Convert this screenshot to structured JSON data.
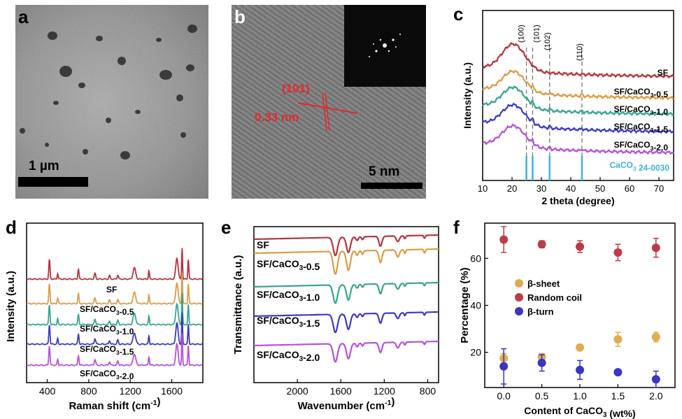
{
  "panels": {
    "a": {
      "label": "a",
      "scale_text": "1 µm"
    },
    "b": {
      "label": "b",
      "scale_text": "5 nm",
      "plane": "(101)",
      "dspacing": "0.33 nm"
    },
    "c": {
      "label": "c",
      "xlabel": "2 theta (degree)",
      "ylabel": "Intensity (a.u.)",
      "xticks": [
        "10",
        "20",
        "30",
        "40",
        "50",
        "60",
        "70"
      ],
      "peaks": [
        "(100)",
        "(101)",
        "(102)",
        "(110)"
      ],
      "series": [
        "SF",
        "SF/CaCO3-0.5",
        "SF/CaCO3-1.0",
        "SF/CaCO3-1.5",
        "SF/CaCO3-2.0"
      ],
      "ref": "CaCO3 24-0030"
    },
    "d": {
      "label": "d",
      "xlabel": "Raman shift (cm-1)",
      "ylabel": "Intensity (a.u.)",
      "xticks": [
        "400",
        "800",
        "1200",
        "1600"
      ],
      "series": [
        "SF",
        "SF/CaCO3-0.5",
        "SF/CaCO3-1.0",
        "SF/CaCO3-1.5",
        "SF/CaCO3-2.0"
      ]
    },
    "e": {
      "label": "e",
      "xlabel": "Wavenumber (cm-1)",
      "ylabel": "Transmittance (a.u.)",
      "xticks": [
        "2000",
        "1600",
        "1200",
        "800"
      ],
      "series": [
        "SF",
        "SF/CaCO3-0.5",
        "SF/CaCO3-1.0",
        "SF/CaCO3-1.5",
        "SF/CaCO3-2.0"
      ]
    },
    "f": {
      "label": "f",
      "xlabel": "Content of CaCO3 (wt%)",
      "ylabel": "Percentage (%)",
      "xticks": [
        "0.0",
        "0.5",
        "1.0",
        "1.5",
        "2.0"
      ],
      "yticks": [
        "20",
        "40",
        "60"
      ]
    }
  },
  "chart_data": [
    {
      "type": "line",
      "panel": "c",
      "xlabel": "2 theta (degree)",
      "ylabel": "Intensity (a.u.)",
      "xlim": [
        10,
        75
      ],
      "series": [
        {
          "name": "SF"
        },
        {
          "name": "SF/CaCO3-0.5"
        },
        {
          "name": "SF/CaCO3-1.0"
        },
        {
          "name": "SF/CaCO3-1.5"
        },
        {
          "name": "SF/CaCO3-2.0"
        }
      ],
      "reference": {
        "name": "CaCO3 24-0030",
        "x": [
          24.9,
          27.0,
          32.8,
          43.8
        ]
      },
      "annotations": [
        {
          "text": "(100)",
          "x": 24.9
        },
        {
          "text": "(101)",
          "x": 27.0
        },
        {
          "text": "(102)",
          "x": 32.8
        },
        {
          "text": "(110)",
          "x": 43.8
        }
      ]
    },
    {
      "type": "line",
      "panel": "d",
      "xlabel": "Raman shift (cm-1)",
      "ylabel": "Intensity (a.u.)",
      "xlim": [
        200,
        1900
      ],
      "series": [
        {
          "name": "SF"
        },
        {
          "name": "SF/CaCO3-0.5"
        },
        {
          "name": "SF/CaCO3-1.0"
        },
        {
          "name": "SF/CaCO3-1.5"
        },
        {
          "name": "SF/CaCO3-2.0"
        }
      ]
    },
    {
      "type": "line",
      "panel": "e",
      "xlabel": "Wavenumber (cm-1)",
      "ylabel": "Transmittance (a.u.)",
      "xlim": [
        2400,
        700
      ],
      "series": [
        {
          "name": "SF"
        },
        {
          "name": "SF/CaCO3-0.5"
        },
        {
          "name": "SF/CaCO3-1.0"
        },
        {
          "name": "SF/CaCO3-1.5"
        },
        {
          "name": "SF/CaCO3-2.0"
        }
      ]
    },
    {
      "type": "scatter",
      "panel": "f",
      "xlabel": "Content of CaCO3 (wt%)",
      "ylabel": "Percentage (%)",
      "xlim": [
        -0.25,
        2.25
      ],
      "ylim": [
        5,
        75
      ],
      "x": [
        0.0,
        0.5,
        1.0,
        1.5,
        2.0
      ],
      "series": [
        {
          "name": "β-sheet",
          "values": [
            17.5,
            18.0,
            22.0,
            25.5,
            26.5
          ],
          "err": [
            2.0,
            1.5,
            1.0,
            3.0,
            2.0
          ],
          "color": "#e0ac52"
        },
        {
          "name": "Random coil",
          "values": [
            68.0,
            66.0,
            65.0,
            62.5,
            64.5
          ],
          "err": [
            5.5,
            1.5,
            2.5,
            3.5,
            4.0
          ],
          "color": "#bd3b45"
        },
        {
          "name": "β-turn",
          "values": [
            14.0,
            15.5,
            12.5,
            11.5,
            8.5
          ],
          "err": [
            7.5,
            3.5,
            4.0,
            1.0,
            3.5
          ],
          "color": "#3b35c8"
        }
      ]
    }
  ],
  "colors": {
    "SF": "#b6333f",
    "0.5": "#d99d45",
    "1.0": "#35a68e",
    "1.5": "#3b3bc4",
    "2.0": "#b751d9",
    "ref": "#3fb0e0"
  }
}
